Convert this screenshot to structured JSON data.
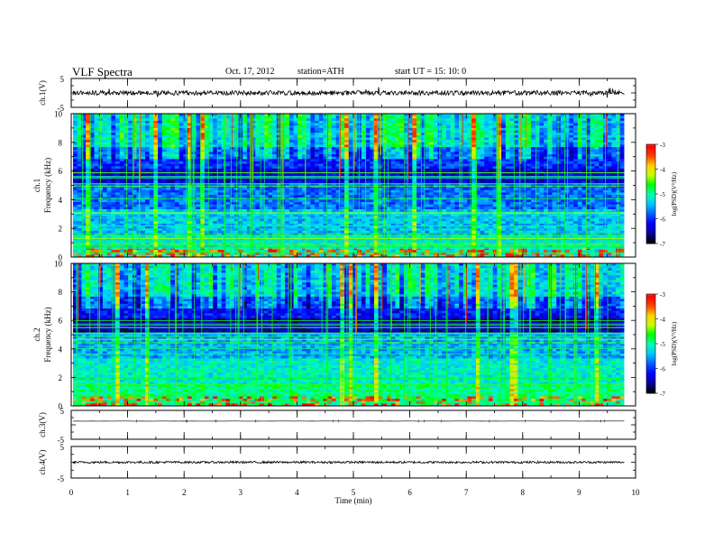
{
  "header": {
    "title": "VLF  Spectra",
    "date": "Oct. 17, 2012",
    "station": "station=ATH",
    "start_ut": "start  UT  =    15: 10: 0"
  },
  "colors": {
    "trace": "#000000",
    "colormap": [
      "#000000",
      "#0a00a0",
      "#0000ff",
      "#0060ff",
      "#00c8ff",
      "#00ffb0",
      "#00ff00",
      "#c8ff00",
      "#ffd000",
      "#ff4000",
      "#ff0000",
      "#ffffff"
    ]
  },
  "chart_data": [
    {
      "type": "line",
      "ylabel": "ch.1(V)",
      "yticks": [
        "5",
        "-5"
      ],
      "ylim": [
        -5,
        5
      ],
      "note": "noisy waveform trace"
    },
    {
      "type": "heatmap",
      "ylabel_top": "ch.1",
      "ylabel": "Frequency  (kHz)",
      "yticks": [
        "0",
        "2",
        "4",
        "6",
        "8",
        "10"
      ],
      "ylim": [
        0,
        10
      ],
      "xlim": [
        0,
        10
      ],
      "colorbar": {
        "label": "log(PSD)(V²/Hz)",
        "ticks": [
          "-3",
          "-4",
          "-5",
          "-6",
          "-7"
        ],
        "range": [
          -7,
          -3
        ]
      }
    },
    {
      "type": "heatmap",
      "ylabel_top": "ch.2",
      "ylabel": "Frequency  (kHz)",
      "yticks": [
        "0",
        "2",
        "4",
        "6",
        "8",
        "10"
      ],
      "ylim": [
        0,
        10
      ],
      "xlim": [
        0,
        10
      ],
      "colorbar": {
        "label": "log(PSD)(V²/Hz)",
        "ticks": [
          "-3",
          "-4",
          "-5",
          "-6",
          "-7"
        ],
        "range": [
          -7,
          -3
        ]
      }
    },
    {
      "type": "line",
      "ylabel": "ch.3(V)",
      "yticks": [
        "5",
        "-5"
      ],
      "ylim": [
        -5,
        5
      ]
    },
    {
      "type": "line",
      "ylabel": "ch.4(V)",
      "yticks": [
        "5",
        "-5"
      ],
      "ylim": [
        -5,
        5
      ]
    }
  ],
  "xaxis": {
    "label": "Time  (min)",
    "ticks": [
      "0",
      "1",
      "2",
      "3",
      "4",
      "5",
      "6",
      "7",
      "8",
      "9",
      "10"
    ],
    "range": [
      0,
      10
    ]
  }
}
